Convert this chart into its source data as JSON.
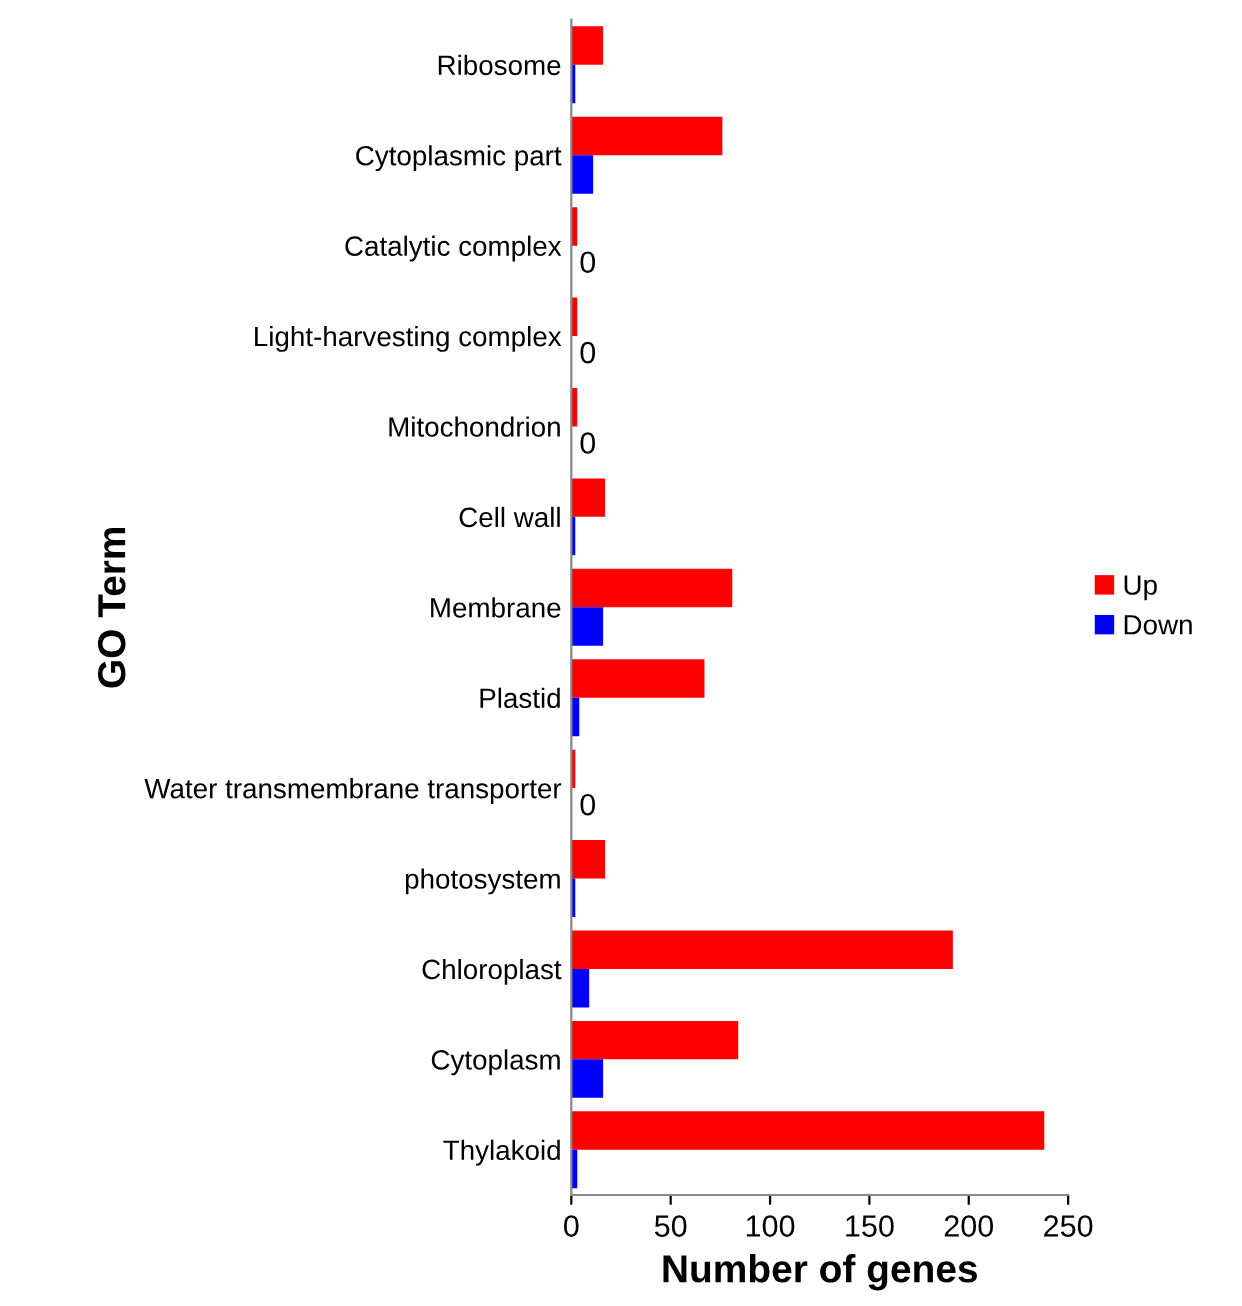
{
  "chart_data": {
    "type": "bar",
    "orientation": "horizontal",
    "xlabel": "Number of genes",
    "ylabel": "GO Term",
    "categories": [
      "Ribosome",
      "Cytoplasmic part",
      "Catalytic complex",
      "Light-harvesting complex",
      "Mitochondrion",
      "Cell wall",
      "Membrane",
      "Plastid",
      "Water transmembrane transporter",
      "photosystem",
      "Chloroplast",
      "Cytoplasm",
      "Thylakoid"
    ],
    "series": [
      {
        "name": "Up",
        "color": "#ff0000",
        "values": [
          16,
          76,
          3,
          3,
          3,
          17,
          81,
          67,
          2,
          17,
          192,
          84,
          238
        ]
      },
      {
        "name": "Down",
        "color": "#0000ff",
        "values": [
          2,
          11,
          0,
          0,
          0,
          2,
          16,
          4,
          0,
          2,
          9,
          16,
          3
        ],
        "value_labels": [
          null,
          null,
          "0",
          "0",
          "0",
          null,
          null,
          null,
          "0",
          null,
          null,
          null,
          null
        ]
      }
    ],
    "xlim": [
      0,
      250
    ],
    "xticks": [
      0,
      50,
      100,
      150,
      200,
      250
    ],
    "grid": false,
    "legend": "right"
  }
}
